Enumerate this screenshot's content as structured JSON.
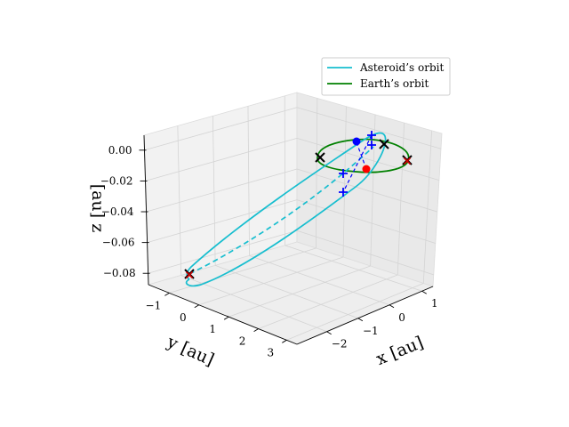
{
  "chart_data": {
    "type": "line3d",
    "title": "",
    "xlabel": "x [au]",
    "ylabel": "y [au]",
    "zlabel": "[au] z",
    "x_ticks": [
      "−2",
      "−1",
      "0",
      "1"
    ],
    "y_ticks": [
      "−1",
      "0",
      "1",
      "2",
      "3"
    ],
    "z_ticks": [
      "0.00",
      "−0.02",
      "−0.04",
      "−0.06",
      "−0.08"
    ],
    "legend": {
      "placement": "top-right",
      "entries": [
        {
          "label": "Asteroid’s orbit",
          "color": "#17becf"
        },
        {
          "label": "Earth’s orbit",
          "color": "#008000"
        }
      ]
    },
    "series": [
      {
        "name": "Asteroid’s orbit",
        "color": "#17becf",
        "style": "solid with dashed back half"
      },
      {
        "name": "Earth’s orbit",
        "color": "#008000",
        "style": "solid"
      }
    ],
    "markers": [
      {
        "kind": "x",
        "color": "#000000",
        "count": 4
      },
      {
        "kind": "x",
        "color": "#cc0000",
        "count": 2
      },
      {
        "kind": "+",
        "color": "#0000ff",
        "count": 4
      },
      {
        "kind": "dot",
        "color": "#0000ff",
        "count": 1
      },
      {
        "kind": "dot",
        "color": "#ff0000",
        "count": 1
      }
    ],
    "grid": true,
    "pane_color": "#f2f2f2"
  }
}
